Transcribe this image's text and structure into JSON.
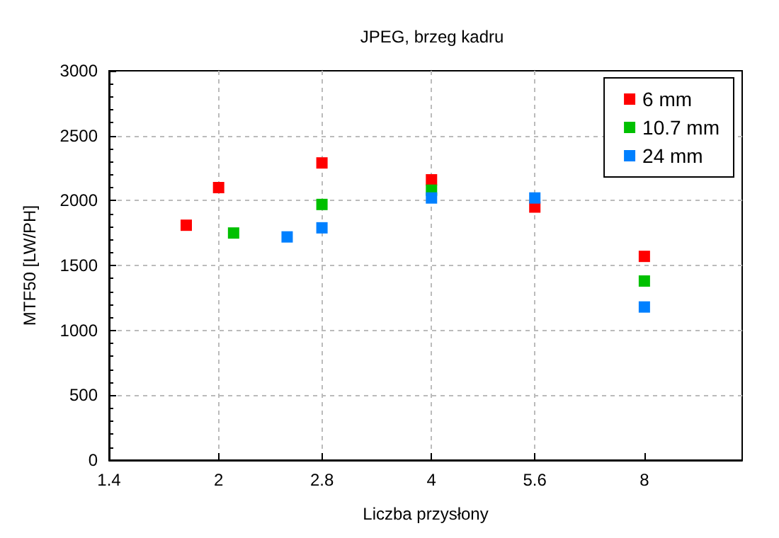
{
  "chart_data": {
    "type": "scatter",
    "title": "JPEG, brzeg kadru",
    "xlabel": "Liczba przysłony",
    "ylabel": "MTF50 [LW/PH]",
    "log": "x",
    "xlim": [
      1.4,
      11
    ],
    "xticks": [
      1.4,
      2,
      2.8,
      4,
      5.6,
      8
    ],
    "ylim": [
      0,
      3000
    ],
    "yticks": [
      0,
      500,
      1000,
      1500,
      2000,
      2500,
      3000
    ],
    "grid": true,
    "legend": "top right",
    "marker": "square",
    "series": [
      {
        "name": "6 mm",
        "color": "#ff0000",
        "x": [
          1.8,
          2,
          2.8,
          4,
          5.6,
          8
        ],
        "values": [
          1810,
          2100,
          2290,
          2160,
          1950,
          1570
        ]
      },
      {
        "name": "10.7 mm",
        "color": "#00c000",
        "x": [
          2.1,
          2.8,
          4,
          8
        ],
        "values": [
          1750,
          1970,
          2080,
          1380
        ]
      },
      {
        "name": "24 mm",
        "color": "#0080ff",
        "x": [
          2.5,
          2.8,
          4,
          5.6,
          8
        ],
        "values": [
          1720,
          1790,
          2020,
          2020,
          1180
        ]
      }
    ]
  }
}
